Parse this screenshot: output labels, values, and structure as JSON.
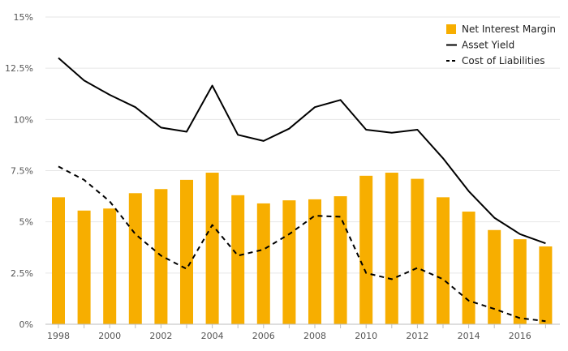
{
  "chart_data": {
    "type": "bar+line",
    "title": "",
    "xlabel": "",
    "ylabel": "",
    "ylim": [
      0,
      15
    ],
    "y_ticks": [
      0,
      2.5,
      5,
      7.5,
      10,
      12.5,
      15
    ],
    "y_tick_labels": [
      "0%",
      "2.5%",
      "5%",
      "7.5%",
      "10%",
      "12.5%",
      "15%"
    ],
    "x_tick_labels": [
      "1998",
      "2000",
      "2002",
      "2004",
      "2006",
      "2008",
      "2010",
      "2012",
      "2014",
      "2016"
    ],
    "categories": [
      1998,
      1999,
      2000,
      2001,
      2002,
      2003,
      2004,
      2005,
      2006,
      2007,
      2008,
      2009,
      2010,
      2011,
      2012,
      2013,
      2014,
      2015,
      2016,
      2017
    ],
    "grid": "horizontal",
    "legend_position": "top-right",
    "series": [
      {
        "name": "Net Interest Margin",
        "kind": "bar",
        "color": "#F7AE00",
        "values": [
          6.2,
          5.55,
          5.65,
          6.4,
          6.6,
          7.05,
          7.4,
          6.3,
          5.9,
          6.05,
          6.1,
          6.25,
          7.25,
          7.4,
          7.1,
          6.2,
          5.5,
          4.6,
          4.15,
          3.8
        ]
      },
      {
        "name": "Asset Yield",
        "kind": "line",
        "color": "#000000",
        "dash": "solid",
        "values": [
          13.0,
          11.9,
          11.2,
          10.6,
          9.6,
          9.4,
          11.65,
          9.25,
          8.95,
          9.55,
          10.6,
          10.95,
          9.5,
          9.35,
          9.5,
          8.1,
          6.5,
          5.2,
          4.4,
          3.95
        ]
      },
      {
        "name": "Cost of Liabilities",
        "kind": "line",
        "color": "#000000",
        "dash": "dashed",
        "values": [
          7.7,
          7.05,
          6.0,
          4.4,
          3.35,
          2.7,
          4.85,
          3.35,
          3.65,
          4.4,
          5.3,
          5.25,
          2.5,
          2.2,
          2.75,
          2.2,
          1.15,
          0.75,
          0.3,
          0.15
        ]
      }
    ]
  }
}
